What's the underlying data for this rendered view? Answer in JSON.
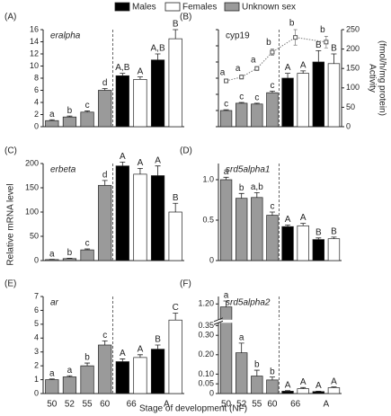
{
  "chart_data": {
    "type": "bar",
    "xlabel": "Stage of development (NF)",
    "ylabel": "Relative mRNA level",
    "categories": [
      "50",
      "52",
      "55",
      "60",
      "66",
      "A"
    ],
    "series": [
      {
        "name": "Males",
        "color": "#000000"
      },
      {
        "name": "Females",
        "color": "#ffffff"
      },
      {
        "name": "Unknown sex",
        "color": "#9a9a9a"
      }
    ],
    "panels": [
      {
        "label": "(A)",
        "title": "eralpha",
        "title_italic": true,
        "ylim": [
          0,
          16
        ],
        "yticks": [
          0,
          2,
          4,
          6,
          8,
          10,
          12,
          14,
          16
        ],
        "series": [
          {
            "values": [
              null,
              null,
              null,
              null,
              8.4,
              11.0
            ],
            "errors": [
              null,
              null,
              null,
              null,
              0.4,
              1.0
            ],
            "letters": [
              null,
              null,
              null,
              null,
              "A,B",
              "A,B"
            ]
          },
          {
            "values": [
              null,
              null,
              null,
              null,
              7.8,
              14.5
            ],
            "errors": [
              null,
              null,
              null,
              null,
              0.4,
              1.5
            ],
            "letters": [
              null,
              null,
              null,
              null,
              "A",
              "B"
            ]
          },
          {
            "values": [
              1.0,
              1.6,
              2.4,
              6.0,
              null,
              null
            ],
            "errors": [
              0.15,
              0.15,
              0.2,
              0.3,
              null,
              null
            ],
            "letters": [
              "a",
              "b",
              "c",
              "d",
              null,
              null
            ]
          }
        ]
      },
      {
        "label": "(B)",
        "title": "cyp19",
        "title_italic": false,
        "ylim": [
          0,
          6
        ],
        "yticks": [
          0,
          1,
          2,
          3,
          4,
          5,
          6
        ],
        "ytick_labels": false,
        "y2lim": [
          0,
          250
        ],
        "y2ticks": [
          0,
          50,
          100,
          150,
          200,
          250
        ],
        "y2label": [
          "Activity",
          "(fmol/h/mg protein)"
        ],
        "activity": {
          "axis": "y2",
          "values": [
            118,
            128,
            150,
            192,
            230,
            218
          ],
          "errors": [
            5,
            5,
            5,
            8,
            20,
            15
          ],
          "letters": [
            "a",
            "a",
            "a",
            "b",
            "b",
            "b"
          ]
        },
        "series": [
          {
            "values": [
              null,
              null,
              null,
              null,
              3.0,
              4.0
            ],
            "errors": [
              null,
              null,
              null,
              null,
              0.3,
              0.7
            ],
            "letters": [
              null,
              null,
              null,
              null,
              "A",
              "B"
            ]
          },
          {
            "values": [
              null,
              null,
              null,
              null,
              3.3,
              3.9
            ],
            "errors": [
              null,
              null,
              null,
              null,
              0.15,
              0.6
            ],
            "letters": [
              null,
              null,
              null,
              null,
              "A",
              "B"
            ]
          },
          {
            "values": [
              1.0,
              1.45,
              1.4,
              2.1,
              null,
              null
            ],
            "errors": [
              0.05,
              0.05,
              0.05,
              0.1,
              null,
              null
            ],
            "letters": [
              "c",
              "c",
              "c",
              "c",
              null,
              null
            ]
          }
        ]
      },
      {
        "label": "(C)",
        "title": "erbeta",
        "title_italic": true,
        "ylim": [
          0,
          200
        ],
        "yticks": [
          0,
          50,
          100,
          150,
          200
        ],
        "series": [
          {
            "values": [
              null,
              null,
              null,
              null,
              195,
              175
            ],
            "errors": [
              null,
              null,
              null,
              null,
              8,
              20
            ],
            "letters": [
              null,
              null,
              null,
              null,
              "A",
              "A"
            ]
          },
          {
            "values": [
              null,
              null,
              null,
              null,
              178,
              100
            ],
            "errors": [
              null,
              null,
              null,
              null,
              12,
              18
            ],
            "letters": [
              null,
              null,
              null,
              null,
              "A",
              "B"
            ]
          },
          {
            "values": [
              2,
              4,
              22,
              155,
              null,
              null
            ],
            "errors": [
              0.5,
              0.8,
              2,
              10,
              null,
              null
            ],
            "letters": [
              "a",
              "b",
              "c",
              "d",
              null,
              null
            ]
          }
        ]
      },
      {
        "label": "(D)",
        "title": "srd5alpha1",
        "title_italic": true,
        "ylim": [
          0,
          1.2
        ],
        "yticks": [
          0,
          0.5,
          {
            "value": 1,
            "label": "1.0"
          }
        ],
        "series": [
          {
            "values": [
              null,
              null,
              null,
              null,
              0.42,
              0.26
            ],
            "errors": [
              null,
              null,
              null,
              null,
              0.02,
              0.02
            ],
            "letters": [
              null,
              null,
              null,
              null,
              "A",
              "B"
            ]
          },
          {
            "values": [
              null,
              null,
              null,
              null,
              0.43,
              0.27
            ],
            "errors": [
              null,
              null,
              null,
              null,
              0.03,
              0.02
            ],
            "letters": [
              null,
              null,
              null,
              null,
              "A",
              "B"
            ]
          },
          {
            "values": [
              1.0,
              0.77,
              0.78,
              0.56,
              null,
              null
            ],
            "errors": [
              0.03,
              0.06,
              0.06,
              0.04,
              null,
              null
            ],
            "letters": [
              "a",
              "b",
              "a,b",
              "c",
              null,
              null
            ]
          }
        ]
      },
      {
        "label": "(E)",
        "title": "ar",
        "title_italic": true,
        "ylim": [
          0,
          7
        ],
        "yticks": [
          0,
          1,
          2,
          3,
          4,
          5,
          6,
          7
        ],
        "series": [
          {
            "values": [
              null,
              null,
              null,
              null,
              2.3,
              3.2
            ],
            "errors": [
              null,
              null,
              null,
              null,
              0.2,
              0.3
            ],
            "letters": [
              null,
              null,
              null,
              null,
              "A",
              "B"
            ]
          },
          {
            "values": [
              null,
              null,
              null,
              null,
              2.6,
              5.3
            ],
            "errors": [
              null,
              null,
              null,
              null,
              0.2,
              0.5
            ],
            "letters": [
              null,
              null,
              null,
              null,
              "A",
              "C"
            ]
          },
          {
            "values": [
              1.0,
              1.2,
              2.0,
              3.5,
              null,
              null
            ],
            "errors": [
              0.05,
              0.08,
              0.2,
              0.3,
              null,
              null
            ],
            "letters": [
              "a",
              "a",
              "b",
              "c",
              null,
              null
            ]
          }
        ]
      },
      {
        "label": "(F)",
        "title": "srd5alpha2",
        "title_italic": true,
        "ylim": [
          0,
          1.25
        ],
        "ybreak": [
          0.36,
          1.1
        ],
        "yticks": [
          0,
          0.05,
          {
            "value": 0.1,
            "label": "0.10"
          },
          {
            "value": 0.2,
            "label": "0.20"
          },
          {
            "value": 0.3,
            "label": "0.30"
          },
          0.35,
          {
            "value": 1.2,
            "label": "1.20"
          }
        ],
        "series": [
          {
            "values": [
              null,
              null,
              null,
              null,
              0.012,
              0.01
            ],
            "errors": [
              null,
              null,
              null,
              null,
              0.003,
              0.002
            ],
            "letters": [
              null,
              null,
              null,
              null,
              "A",
              "A"
            ]
          },
          {
            "values": [
              null,
              null,
              null,
              null,
              0.025,
              0.03
            ],
            "errors": [
              null,
              null,
              null,
              null,
              0.006,
              0.004
            ],
            "letters": [
              null,
              null,
              null,
              null,
              "A",
              "A"
            ]
          },
          {
            "values": [
              1.18,
              0.21,
              0.09,
              0.07,
              null,
              null
            ],
            "errors": [
              0.04,
              0.05,
              0.03,
              0.015,
              null,
              null
            ],
            "letters": [
              "a",
              "a",
              "b",
              "b",
              null,
              null
            ]
          }
        ]
      }
    ]
  }
}
